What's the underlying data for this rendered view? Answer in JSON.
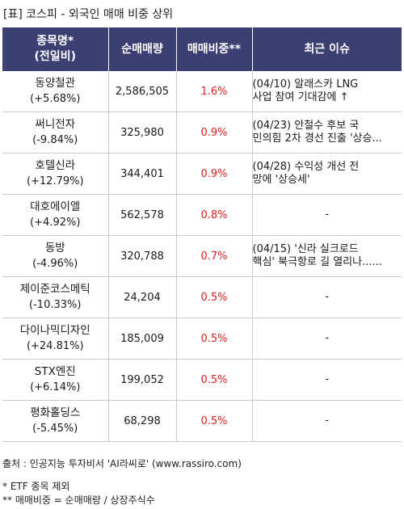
{
  "title": "[표] 코스피 - 외국인 매매 비중 상위",
  "headers": {
    "name_line1": "종목명*",
    "name_line2": "(전일비)",
    "volume": "순매매량",
    "ratio": "매매비중**",
    "issue": "최근 이슈"
  },
  "rows": [
    {
      "name": "동양철관",
      "change": "(+5.68%)",
      "volume": "2,586,505",
      "ratio": "1.6%",
      "issue": [
        "(04/10) 알래스카 LNG",
        "사업 참여 기대감에 ↑"
      ]
    },
    {
      "name": "써니전자",
      "change": "(-9.84%)",
      "volume": "325,980",
      "ratio": "0.9%",
      "issue": [
        "(04/23) 안철수 후보 국",
        "민의힘 2차 경선 진출 '상승..."
      ]
    },
    {
      "name": "호텔신라",
      "change": "(+12.79%)",
      "volume": "344,401",
      "ratio": "0.9%",
      "issue": [
        "(04/28) 수익성 개선 전",
        "망에 '상승세'"
      ]
    },
    {
      "name": "대호에이엘",
      "change": "(+4.92%)",
      "volume": "562,578",
      "ratio": "0.8%",
      "issue": [
        "-"
      ]
    },
    {
      "name": "동방",
      "change": "(-4.96%)",
      "volume": "320,788",
      "ratio": "0.7%",
      "issue": [
        "(04/15) '신라 실크로드",
        " 핵심' 북극항로 길 열리나......"
      ]
    },
    {
      "name": "제이준코스메틱",
      "change": "(-10.33%)",
      "volume": "24,204",
      "ratio": "0.5%",
      "issue": [
        "-"
      ]
    },
    {
      "name": "다이나믹디자인",
      "change": "(+24.81%)",
      "volume": "185,009",
      "ratio": "0.5%",
      "issue": [
        "-"
      ]
    },
    {
      "name": "STX엔진",
      "change": "(+6.14%)",
      "volume": "199,052",
      "ratio": "0.5%",
      "issue": [
        "-"
      ]
    },
    {
      "name": "평화홀딩스",
      "change": "(-5.45%)",
      "volume": "68,298",
      "ratio": "0.5%",
      "issue": [
        "-"
      ]
    }
  ],
  "footer": {
    "source": "출처 : 인공지능 투자비서 'AI라씨로' (www.rassiro.com)",
    "note1": "* ETF 종목 제외",
    "note2": "** 매매비중 = 순매매량 / 상장주식수"
  },
  "colors": {
    "header_bg": "#3b3f72",
    "ratio_text": "#e02020"
  }
}
